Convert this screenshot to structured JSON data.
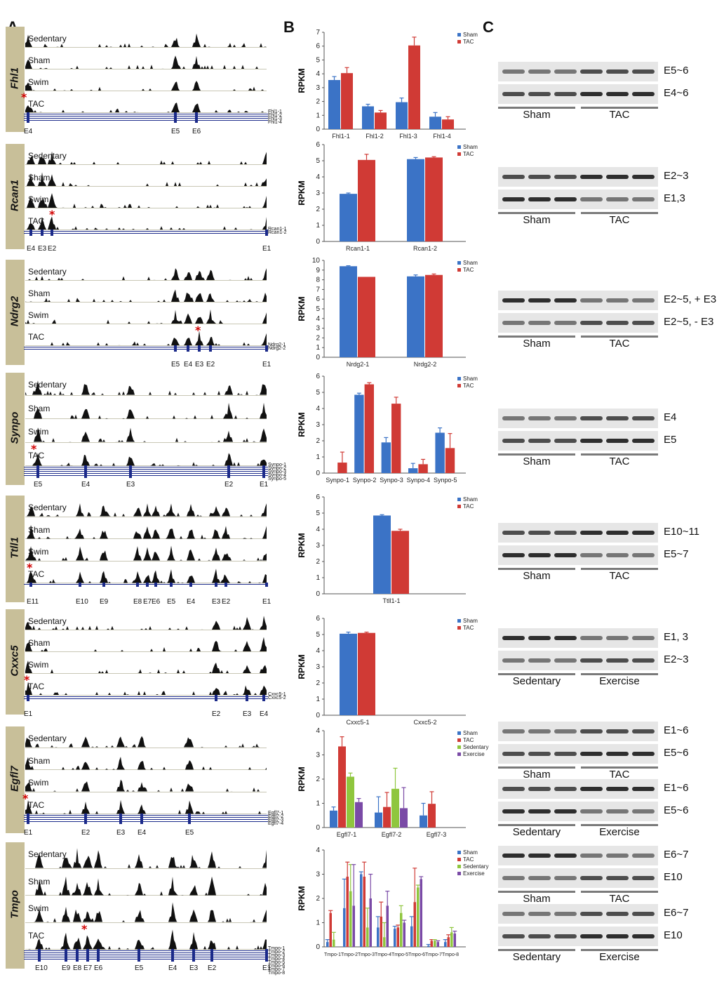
{
  "panels": {
    "A": "A",
    "B": "B",
    "C": "C"
  },
  "colors": {
    "sham": "#3b73c6",
    "tac": "#d03a35",
    "sedentary": "#8fc63e",
    "exercise": "#7a4aa6"
  },
  "tracks_labels": [
    "Sedentary",
    "Sham",
    "Swim",
    "TAC"
  ],
  "genes": [
    {
      "name": "Fhl1",
      "isoforms": [
        "Fhl1-1",
        "Fhl1-2",
        "Fhl1-3",
        "Fhl1-4"
      ],
      "exons": [
        "E4",
        "E5",
        "E6"
      ]
    },
    {
      "name": "Rcan1",
      "isoforms": [
        "Rcan1-1",
        "Rcan1-2"
      ],
      "exons": [
        "E4",
        "E3",
        "E2",
        "E1"
      ]
    },
    {
      "name": "Ndrg2",
      "isoforms": [
        "Ndrg2-1",
        "Ndrg2-2"
      ],
      "exons": [
        "E5",
        "E4",
        "E3",
        "E2",
        "E1"
      ]
    },
    {
      "name": "Synpo",
      "isoforms": [
        "Synpo-1",
        "Synpo-2",
        "Synpo-3",
        "Synpo-4",
        "Synpo-5"
      ],
      "exons": [
        "E5",
        "E4",
        "E3",
        "E2",
        "E1"
      ]
    },
    {
      "name": "Ttll1",
      "isoforms": [],
      "exons": [
        "E11",
        "E10",
        "E9",
        "E8",
        "E7",
        "E6",
        "E5",
        "E4",
        "E3",
        "E2",
        "E1"
      ]
    },
    {
      "name": "Cxxc5",
      "isoforms": [
        "Cxxc5-1",
        "Cxxc5-2"
      ],
      "exons": [
        "E1",
        "E2",
        "E3",
        "E4"
      ]
    },
    {
      "name": "Egfl7",
      "isoforms": [
        "Egfl7-1",
        "Egfl7-2",
        "Egfl7-3",
        "Egfl7-4"
      ],
      "exons": [
        "E1",
        "E2",
        "E3",
        "E4",
        "E5"
      ]
    },
    {
      "name": "Tmpo",
      "isoforms": [
        "Tmpo-1",
        "Tmpo-2",
        "Tmpo-3",
        "Tmpo-4",
        "Tmpo-5",
        "Tmpo-6",
        "Tmpo-7",
        "Tmpo-8"
      ],
      "exons": [
        "E10",
        "E9",
        "E8",
        "E7",
        "E6",
        "E5",
        "E4",
        "E3",
        "E2",
        "E1"
      ]
    }
  ],
  "chart_data": [
    {
      "type": "bar",
      "ylabel": "RPKM",
      "ylim": [
        0,
        7
      ],
      "yticks": [
        0,
        1,
        2,
        3,
        4,
        5,
        6,
        7
      ],
      "categories": [
        "Fhl1-1",
        "Fhl1-2",
        "Fhl1-3",
        "Fhl1-4"
      ],
      "series": [
        {
          "name": "Sham",
          "values": [
            3.55,
            1.65,
            1.95,
            0.9
          ],
          "err": [
            0.25,
            0.15,
            0.3,
            0.3
          ]
        },
        {
          "name": "TAC",
          "values": [
            4.05,
            1.2,
            6.05,
            0.7
          ],
          "err": [
            0.4,
            0.15,
            0.6,
            0.2
          ]
        }
      ]
    },
    {
      "type": "bar",
      "ylabel": "RPKM",
      "ylim": [
        0,
        6
      ],
      "yticks": [
        0,
        1,
        2,
        3,
        4,
        5,
        6
      ],
      "categories": [
        "Rcan1-1",
        "Rcan1-2"
      ],
      "series": [
        {
          "name": "Sham",
          "values": [
            2.95,
            5.1
          ],
          "err": [
            0.05,
            0.1
          ]
        },
        {
          "name": "TAC",
          "values": [
            5.05,
            5.2
          ],
          "err": [
            0.35,
            0.05
          ]
        }
      ]
    },
    {
      "type": "bar",
      "ylabel": "RPKM",
      "ylim": [
        0,
        10
      ],
      "yticks": [
        0,
        1,
        2,
        3,
        4,
        5,
        6,
        7,
        8,
        9,
        10
      ],
      "categories": [
        "Nrdg2-1",
        "Nrdg2-2"
      ],
      "series": [
        {
          "name": "Sham",
          "values": [
            9.4,
            8.35
          ],
          "err": [
            0.05,
            0.15
          ]
        },
        {
          "name": "TAC",
          "values": [
            8.3,
            8.5
          ],
          "err": [
            0.0,
            0.1
          ]
        }
      ]
    },
    {
      "type": "bar",
      "ylabel": "RPKM",
      "ylim": [
        0,
        6
      ],
      "yticks": [
        0,
        1,
        2,
        3,
        4,
        5,
        6
      ],
      "categories": [
        "Synpo-1",
        "Synpo-2",
        "Synpo-3",
        "Synpo-4",
        "Synpo-5"
      ],
      "series": [
        {
          "name": "Sham",
          "values": [
            0.0,
            4.85,
            1.9,
            0.3,
            2.5
          ],
          "err": [
            0,
            0.1,
            0.3,
            0.3,
            0.3
          ]
        },
        {
          "name": "TAC",
          "values": [
            0.65,
            5.5,
            4.3,
            0.55,
            1.55
          ],
          "err": [
            0.65,
            0.1,
            0.4,
            0.3,
            0.9
          ]
        }
      ]
    },
    {
      "type": "bar",
      "ylabel": "RPKM",
      "ylim": [
        0,
        6
      ],
      "yticks": [
        0,
        1,
        2,
        3,
        4,
        5,
        6
      ],
      "categories": [
        "Ttll1-1"
      ],
      "series": [
        {
          "name": "Sham",
          "values": [
            4.85
          ],
          "err": [
            0.05
          ]
        },
        {
          "name": "TAC",
          "values": [
            3.9
          ],
          "err": [
            0.1
          ]
        }
      ]
    },
    {
      "type": "bar",
      "ylabel": "RPKM",
      "ylim": [
        0,
        6
      ],
      "yticks": [
        0,
        1,
        2,
        3,
        4,
        5,
        6
      ],
      "categories": [
        "Cxxc5-1",
        "Cxxc5-2"
      ],
      "series": [
        {
          "name": "Sham",
          "values": [
            5.05,
            0
          ],
          "err": [
            0.1,
            0
          ]
        },
        {
          "name": "TAC",
          "values": [
            5.1,
            0
          ],
          "err": [
            0.05,
            0
          ]
        }
      ]
    },
    {
      "type": "bar",
      "ylabel": "RPKM",
      "ylim": [
        0,
        4
      ],
      "yticks": [
        0,
        1,
        2,
        3,
        4
      ],
      "categories": [
        "Egfl7-1",
        "Egfl7-2",
        "Egfl7-3"
      ],
      "series": [
        {
          "name": "Sham",
          "values": [
            0.7,
            0.62,
            0.5
          ],
          "err": [
            0.15,
            0.65,
            0.5
          ]
        },
        {
          "name": "TAC",
          "values": [
            3.35,
            0.85,
            0.98
          ],
          "err": [
            0.4,
            0.6,
            0.5
          ]
        },
        {
          "name": "Sedentary",
          "values": [
            2.1,
            1.6,
            0
          ],
          "err": [
            0.15,
            0.85,
            0
          ]
        },
        {
          "name": "Exercise",
          "values": [
            1.05,
            0.8,
            0
          ],
          "err": [
            0.15,
            0.85,
            0
          ]
        }
      ]
    },
    {
      "type": "bar",
      "ylabel": "RPKM",
      "ylim": [
        0,
        4
      ],
      "yticks": [
        0,
        1,
        2,
        3,
        4
      ],
      "categories": [
        "Tmpo-1",
        "Tmpo-2",
        "Tmpo-3",
        "Tmpo-4",
        "Tmpo-5",
        "Tmpo-6",
        "Tmpo-7",
        "Tmpo-8"
      ],
      "series": [
        {
          "name": "Sham",
          "values": [
            0.2,
            1.6,
            3.0,
            0.8,
            0.75,
            0.85,
            0.05,
            0.2
          ],
          "err": [
            0.1,
            1.2,
            0.1,
            0.45,
            0.1,
            0.4,
            0.05,
            0.1
          ]
        },
        {
          "name": "TAC",
          "values": [
            1.4,
            2.9,
            2.9,
            1.25,
            0.8,
            1.85,
            0.25,
            0.4
          ],
          "err": [
            0.1,
            0.6,
            0.6,
            0.6,
            0.1,
            1.4,
            0.05,
            0.1
          ]
        },
        {
          "name": "Sedentary",
          "values": [
            0.3,
            2.3,
            0.8,
            0.4,
            1.4,
            2.45,
            0.25,
            0.6
          ],
          "err": [
            0.3,
            1.1,
            0.8,
            0.6,
            0.3,
            0.1,
            0.05,
            0.2
          ]
        },
        {
          "name": "Exercise",
          "values": [
            0.0,
            1.7,
            2.0,
            1.7,
            1.0,
            2.8,
            0.2,
            0.55
          ],
          "err": [
            0,
            1.7,
            1.0,
            0.6,
            0.1,
            0.1,
            0.05,
            0.1
          ]
        }
      ]
    }
  ],
  "gels": [
    {
      "bands": [
        "E5~6",
        "E4~6"
      ],
      "groups": [
        "Sham",
        "TAC"
      ]
    },
    {
      "bands": [
        "E2~3",
        "E1,3"
      ],
      "groups": [
        "Sham",
        "TAC"
      ]
    },
    {
      "bands": [
        "E2~5, + E3",
        "E2~5, - E3"
      ],
      "groups": [
        "Sham",
        "TAC"
      ]
    },
    {
      "bands": [
        "E4",
        "E5"
      ],
      "groups": [
        "Sham",
        "TAC"
      ]
    },
    {
      "bands": [
        "E10~11",
        "E5~7"
      ],
      "groups": [
        "Sham",
        "TAC"
      ]
    },
    {
      "bands": [
        "E1, 3",
        "E2~3"
      ],
      "groups": [
        "Sedentary",
        "Exercise"
      ]
    },
    {
      "bands": [
        "E1~6",
        "E5~6"
      ],
      "groups": [
        "Sham",
        "TAC"
      ]
    },
    {
      "bands": [
        "E1~6",
        "E5~6"
      ],
      "groups": [
        "Sedentary",
        "Exercise"
      ]
    },
    {
      "bands": [
        "E6~7",
        "E10"
      ],
      "groups": [
        "Sham",
        "TAC"
      ]
    },
    {
      "bands": [
        "E6~7",
        "E10"
      ],
      "groups": [
        "Sedentary",
        "Exercise"
      ]
    }
  ]
}
